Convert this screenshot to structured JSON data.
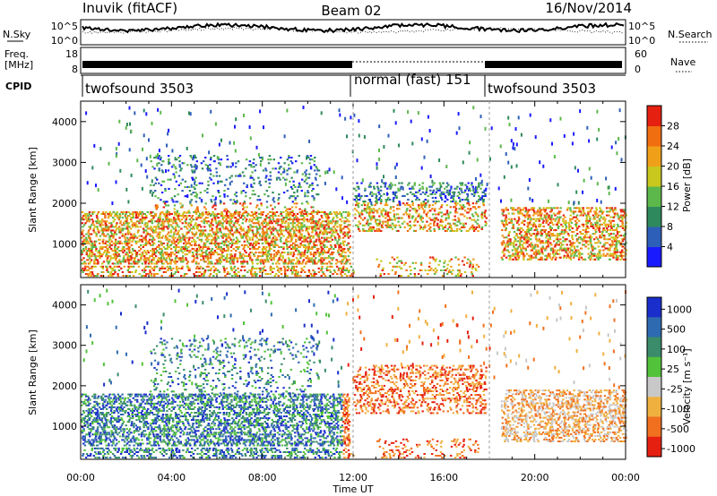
{
  "header": {
    "left_title": "Inuvik (fitACF)",
    "center_title": "Beam 02",
    "right_title": "16/Nov/2014"
  },
  "strips": {
    "nsky_label": "N.Sky",
    "nsky_tick_hi": "10^5",
    "nsky_tick_lo": "10^0",
    "nsearch_label": "N.Search",
    "nsearch_tick_hi": "10^5",
    "nsearch_tick_lo": "10^0",
    "freq_label_1": "Freq.",
    "freq_label_2": "[MHz]",
    "freq_tick_hi": "18",
    "freq_tick_lo": "8",
    "nave_label": "Nave",
    "nave_tick_hi": "60",
    "nave_tick_lo": "0",
    "cpid_label": "CPID",
    "cpid_segments": [
      {
        "name": "twofsound 3503",
        "start_hour": 0,
        "end_hour": 12
      },
      {
        "name": "normal (fast) 151",
        "start_hour": 12,
        "end_hour": 18
      },
      {
        "name": "twofsound 3503",
        "start_hour": 18,
        "end_hour": 24
      }
    ]
  },
  "chart_data": [
    {
      "type": "heatmap",
      "title": "Power",
      "xlabel": "Time UT",
      "ylabel": "Slant Range [km]",
      "xlim": [
        0,
        24
      ],
      "ylim": [
        180,
        4500
      ],
      "x_tick_labels": [
        "00:00",
        "04:00",
        "08:00",
        "12:00",
        "16:00",
        "20:00",
        "00:00"
      ],
      "x_tick_values": [
        0,
        4,
        8,
        12,
        16,
        20,
        24
      ],
      "y_ticks": [
        1000,
        2000,
        3000,
        4000
      ],
      "colorbar": {
        "label": "Power [dB]",
        "range": [
          0,
          32
        ],
        "tick_values": [
          4,
          8,
          12,
          16,
          20,
          24,
          28
        ],
        "tick_labels": [
          "4",
          "8",
          "12",
          "16",
          "20",
          "24",
          "28"
        ],
        "colors": [
          "#1a1aff",
          "#2e5fb8",
          "#2e8a5c",
          "#5cb84a",
          "#c8c81e",
          "#f0a018",
          "#f06e10",
          "#e62010"
        ]
      }
    },
    {
      "type": "heatmap",
      "title": "Velocity",
      "xlabel": "Time UT",
      "ylabel": "Slant Range [km]",
      "xlim": [
        0,
        24
      ],
      "ylim": [
        180,
        4500
      ],
      "x_tick_labels": [
        "00:00",
        "04:00",
        "08:00",
        "12:00",
        "16:00",
        "20:00",
        "00:00"
      ],
      "x_tick_values": [
        0,
        4,
        8,
        12,
        16,
        20,
        24
      ],
      "y_ticks": [
        1000,
        2000,
        3000,
        4000
      ],
      "colorbar": {
        "label": "Velocity [m s⁻¹]",
        "tick_labels": [
          "1000",
          "500",
          "100",
          "25",
          "-25",
          "-100",
          "-500",
          "-1000"
        ],
        "colors": [
          "#1a2ecc",
          "#2e6ab0",
          "#3a8c6a",
          "#52c23a",
          "#c8c8c8",
          "#f0b040",
          "#f07020",
          "#e62010"
        ]
      }
    }
  ]
}
